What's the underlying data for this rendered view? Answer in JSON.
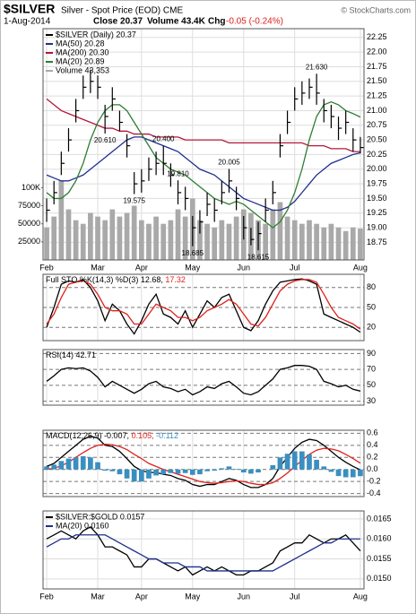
{
  "header": {
    "symbol": "$SILVER",
    "description": "Silver - Spot Price (EOD) CME",
    "date": "1-Aug-2014",
    "close": "Close 20.37",
    "volume": "Volume 43.4K",
    "chg_label": "Chg",
    "chg": "-0.05 (-0.24%)",
    "credit": "© StockCharts.com"
  },
  "chart_data": [
    {
      "type": "ohlc",
      "legend": "top-left",
      "legend_style": "stacked",
      "categories": [
        "Feb",
        null,
        null,
        null,
        null,
        null,
        null,
        "Mar",
        null,
        null,
        null,
        null,
        null,
        "Apr",
        null,
        null,
        null,
        null,
        null,
        null,
        "May",
        null,
        null,
        null,
        null,
        null,
        null,
        "Jun",
        null,
        null,
        null,
        null,
        null,
        null,
        "Jul",
        null,
        null,
        null,
        null,
        null,
        null,
        null,
        null,
        "Aug"
      ],
      "ylim": [
        18.45,
        22.4
      ],
      "yticks": [
        18.75,
        {
          "value": 19,
          "label": "19.00"
        },
        19.25,
        {
          "value": 19.5,
          "label": "19.50"
        },
        19.75,
        {
          "value": 20,
          "label": "20.00"
        },
        20.25,
        {
          "value": 20.5,
          "label": "20.50"
        },
        20.75,
        {
          "value": 21,
          "label": "21.00"
        },
        21.25,
        {
          "value": 21.5,
          "label": "21.50"
        },
        21.75,
        {
          "value": 22,
          "label": "22.00"
        },
        22.25
      ],
      "y2lim": [
        0,
        320000
      ],
      "y2ticks": [
        25000,
        50000,
        75000,
        {
          "value": 100000,
          "label": "100K"
        }
      ],
      "series": [
        {
          "name": "Volume 43,353",
          "style": "bar",
          "axis": "y2",
          "color": "#a9a9a9",
          "values": [
            45000,
            60000,
            110000,
            70000,
            55000,
            50000,
            65000,
            60000,
            55000,
            70000,
            60000,
            65000,
            75000,
            55000,
            50000,
            60000,
            50000,
            55000,
            70000,
            60000,
            85000,
            55000,
            50000,
            45000,
            55000,
            50000,
            60000,
            70000,
            65000,
            55000,
            50000,
            70000,
            80000,
            60000,
            55000,
            50000,
            55000,
            50000,
            45000,
            50000,
            45000,
            40000,
            45000,
            43353
          ]
        },
        {
          "name": "MA(200) 20.30",
          "style": "line",
          "color": "#b2183b",
          "values": [
            21.2,
            21.1,
            21.0,
            20.95,
            20.9,
            20.85,
            20.8,
            20.75,
            20.7,
            20.7,
            20.65,
            20.65,
            20.6,
            20.6,
            20.6,
            20.55,
            20.55,
            20.55,
            20.55,
            20.5,
            20.5,
            20.5,
            20.5,
            20.5,
            20.5,
            20.45,
            20.45,
            20.45,
            20.45,
            20.45,
            20.45,
            20.45,
            20.45,
            20.45,
            20.45,
            20.45,
            20.4,
            20.4,
            20.4,
            20.35,
            20.35,
            20.35,
            20.3,
            20.3
          ]
        },
        {
          "name": "MA(50) 20.28",
          "style": "line",
          "color": "#1f2f8f",
          "values": [
            19.9,
            19.85,
            19.8,
            19.8,
            19.85,
            19.9,
            20.0,
            20.1,
            20.2,
            20.3,
            20.4,
            20.5,
            20.55,
            20.55,
            20.5,
            20.45,
            20.4,
            20.35,
            20.3,
            20.2,
            20.1,
            20.0,
            19.95,
            19.9,
            19.8,
            19.7,
            19.6,
            19.5,
            19.45,
            19.4,
            19.35,
            19.3,
            19.3,
            19.35,
            19.45,
            19.6,
            19.75,
            19.9,
            20.0,
            20.1,
            20.15,
            20.2,
            20.25,
            20.28
          ]
        },
        {
          "name": "MA(20) 20.89",
          "style": "line",
          "color": "#2e7d32",
          "values": [
            19.6,
            19.5,
            19.5,
            19.6,
            19.8,
            20.1,
            20.5,
            20.8,
            21.0,
            21.1,
            21.1,
            21.0,
            20.8,
            20.6,
            20.4,
            20.2,
            20.1,
            20.0,
            19.95,
            19.9,
            19.8,
            19.7,
            19.6,
            19.5,
            19.45,
            19.4,
            19.45,
            19.4,
            19.3,
            19.2,
            19.1,
            19.0,
            19.1,
            19.3,
            19.6,
            20.0,
            20.5,
            20.9,
            21.1,
            21.15,
            21.1,
            21.0,
            20.95,
            20.89
          ]
        },
        {
          "name": "$SILVER (Daily) 20.37",
          "style": "ohlc",
          "color": "#000000",
          "high": [
            19.5,
            19.8,
            20.3,
            20.7,
            21.2,
            21.6,
            21.7,
            21.6,
            21.1,
            21.4,
            21.0,
            20.6,
            19.95,
            20.0,
            20.2,
            20.3,
            20.4,
            20.1,
            19.81,
            19.7,
            19.2,
            19.3,
            19.6,
            19.5,
            19.8,
            20.005,
            19.7,
            19.2,
            19.0,
            19.1,
            19.5,
            19.8,
            20.6,
            21.0,
            21.4,
            21.5,
            21.55,
            21.63,
            21.2,
            21.1,
            20.9,
            21.0,
            20.7,
            20.55
          ],
          "low": [
            19.1,
            19.4,
            19.9,
            20.3,
            20.8,
            21.2,
            21.3,
            21.2,
            20.61,
            21.0,
            20.65,
            20.2,
            19.575,
            19.6,
            19.8,
            19.9,
            19.9,
            19.7,
            19.4,
            19.3,
            18.685,
            18.9,
            19.2,
            19.1,
            19.4,
            19.6,
            19.3,
            18.8,
            18.7,
            18.615,
            19.1,
            19.4,
            20.2,
            20.6,
            21.0,
            21.1,
            21.2,
            21.1,
            20.8,
            20.7,
            20.5,
            20.6,
            20.3,
            20.27
          ],
          "values": [
            19.3,
            19.6,
            20.1,
            20.5,
            21.0,
            21.4,
            21.5,
            21.4,
            20.9,
            21.2,
            20.8,
            20.4,
            19.75,
            19.8,
            20.0,
            20.1,
            20.1,
            19.9,
            19.6,
            19.5,
            19.0,
            19.1,
            19.4,
            19.3,
            19.6,
            19.8,
            19.5,
            19.0,
            18.8,
            18.9,
            19.3,
            19.6,
            20.4,
            20.8,
            21.2,
            21.3,
            21.4,
            21.3,
            21.0,
            20.9,
            20.7,
            20.8,
            20.5,
            20.37
          ]
        }
      ],
      "annotations": [
        {
          "value": 21.63,
          "label": "21.630"
        },
        {
          "value": 20.61,
          "label": "20.610"
        },
        {
          "value": 20.4,
          "label": "20.400"
        },
        {
          "value": 20.005,
          "label": "20.005"
        },
        {
          "value": 19.81,
          "label": "19.810"
        },
        {
          "value": 19.575,
          "label": "19.575"
        },
        {
          "value": 18.685,
          "label": "18.685"
        },
        {
          "value": 18.615,
          "label": "18.615"
        }
      ]
    },
    {
      "type": "line",
      "legend": "top-left",
      "legend_style": "inline",
      "ylim": [
        0,
        100
      ],
      "yticks": [
        20,
        50,
        80
      ],
      "series": [
        {
          "name": "Full STO %K(14,3) %D(3) 12.68,",
          "style": "line",
          "color": "#000000",
          "values": [
            20,
            50,
            85,
            90,
            88,
            92,
            80,
            60,
            30,
            55,
            45,
            25,
            10,
            30,
            55,
            70,
            40,
            35,
            25,
            45,
            20,
            40,
            60,
            50,
            65,
            70,
            45,
            20,
            15,
            30,
            55,
            75,
            88,
            90,
            92,
            93,
            90,
            85,
            40,
            35,
            30,
            25,
            20,
            12.68
          ]
        },
        {
          "name": "17.32",
          "style": "line",
          "color": "#e0201b",
          "values": [
            25,
            40,
            65,
            85,
            88,
            90,
            85,
            70,
            50,
            45,
            45,
            40,
            25,
            25,
            40,
            55,
            50,
            45,
            35,
            35,
            30,
            35,
            45,
            50,
            55,
            62,
            55,
            40,
            25,
            22,
            35,
            55,
            75,
            85,
            90,
            92,
            92,
            88,
            70,
            50,
            35,
            30,
            25,
            17.32
          ]
        }
      ]
    },
    {
      "type": "line",
      "legend": "top-left",
      "legend_style": "inline",
      "ylim": [
        25,
        95
      ],
      "yticks": [
        30,
        50,
        70,
        90
      ],
      "series": [
        {
          "name": "RSI(14) 42.71",
          "style": "line",
          "color": "#000000",
          "values": [
            55,
            62,
            70,
            72,
            71,
            72,
            68,
            60,
            48,
            55,
            50,
            45,
            40,
            45,
            52,
            55,
            48,
            46,
            42,
            45,
            38,
            42,
            48,
            46,
            52,
            55,
            48,
            40,
            38,
            42,
            50,
            58,
            70,
            72,
            75,
            75,
            74,
            70,
            55,
            52,
            48,
            50,
            45,
            42.71
          ]
        }
      ]
    },
    {
      "type": "line",
      "legend": "top-left",
      "legend_style": "inline",
      "ylim": [
        -0.45,
        0.65
      ],
      "yticks": [
        -0.4,
        -0.2,
        {
          "value": 0,
          "label": "0.0"
        },
        0.2,
        0.4,
        0.6
      ],
      "series": [
        {
          "name": "MACD(12,26,9) -0.007,",
          "style": "line",
          "color": "#000000",
          "values": [
            0.05,
            0.1,
            0.2,
            0.3,
            0.4,
            0.5,
            0.55,
            0.52,
            0.4,
            0.38,
            0.3,
            0.18,
            0.05,
            -0.02,
            -0.05,
            -0.05,
            -0.08,
            -0.1,
            -0.15,
            -0.18,
            -0.25,
            -0.28,
            -0.25,
            -0.25,
            -0.2,
            -0.15,
            -0.18,
            -0.25,
            -0.3,
            -0.3,
            -0.25,
            -0.15,
            0.05,
            0.2,
            0.35,
            0.45,
            0.5,
            0.48,
            0.4,
            0.3,
            0.2,
            0.12,
            0.05,
            -0.007
          ]
        },
        {
          "name": "0.105,",
          "style": "line",
          "color": "#e0201b",
          "values": [
            0.0,
            0.02,
            0.06,
            0.12,
            0.2,
            0.28,
            0.35,
            0.4,
            0.42,
            0.41,
            0.38,
            0.33,
            0.25,
            0.18,
            0.1,
            0.05,
            0.0,
            -0.04,
            -0.08,
            -0.12,
            -0.16,
            -0.2,
            -0.22,
            -0.23,
            -0.22,
            -0.2,
            -0.19,
            -0.2,
            -0.23,
            -0.25,
            -0.25,
            -0.22,
            -0.15,
            -0.06,
            0.05,
            0.15,
            0.25,
            0.32,
            0.35,
            0.34,
            0.31,
            0.25,
            0.18,
            0.105
          ]
        },
        {
          "name": "-0.112",
          "style": "bar",
          "color": "#3a8fc0",
          "values": [
            0.05,
            0.08,
            0.14,
            0.18,
            0.2,
            0.22,
            0.2,
            0.12,
            -0.02,
            -0.03,
            -0.08,
            -0.15,
            -0.2,
            -0.2,
            -0.15,
            -0.1,
            -0.08,
            -0.06,
            -0.07,
            -0.06,
            -0.09,
            -0.08,
            -0.03,
            -0.02,
            0.02,
            0.05,
            0.01,
            -0.05,
            -0.07,
            -0.05,
            0.0,
            0.07,
            0.2,
            0.26,
            0.3,
            0.3,
            0.25,
            0.16,
            0.05,
            -0.04,
            -0.11,
            -0.13,
            -0.13,
            -0.112
          ]
        }
      ]
    },
    {
      "type": "line",
      "legend": "top-left",
      "legend_style": "stacked",
      "ylim": [
        0.01475,
        0.0167
      ],
      "yticks": [
        {
          "value": 0.015,
          "label": "0.0150"
        },
        0.0155,
        {
          "value": 0.016,
          "label": "0.0160"
        },
        0.0165
      ],
      "categories": [
        "Feb",
        null,
        null,
        null,
        null,
        null,
        null,
        "Mar",
        null,
        null,
        null,
        null,
        null,
        "Apr",
        null,
        null,
        null,
        null,
        null,
        null,
        "May",
        null,
        null,
        null,
        null,
        null,
        null,
        "Jun",
        null,
        null,
        null,
        null,
        null,
        null,
        "Jul",
        null,
        null,
        null,
        null,
        null,
        null,
        null,
        null,
        "Aug"
      ],
      "series": [
        {
          "name": "$SILVER:$GOLD 0.0157",
          "style": "line",
          "color": "#000000",
          "values": [
            0.016,
            0.0161,
            0.0162,
            0.0161,
            0.016,
            0.0162,
            0.0163,
            0.0161,
            0.0158,
            0.0158,
            0.0157,
            0.0156,
            0.0153,
            0.0153,
            0.0155,
            0.0155,
            0.0154,
            0.0153,
            0.0152,
            0.0153,
            0.0151,
            0.0152,
            0.0153,
            0.0152,
            0.0153,
            0.0152,
            0.0151,
            0.0151,
            0.0152,
            0.0152,
            0.0153,
            0.0154,
            0.0157,
            0.0158,
            0.0159,
            0.0159,
            0.0161,
            0.016,
            0.0159,
            0.016,
            0.016,
            0.0161,
            0.0159,
            0.0157
          ]
        },
        {
          "name": "MA(20) 0.0160",
          "style": "line",
          "color": "#1f2f8f",
          "values": [
            0.0158,
            0.0159,
            0.016,
            0.016,
            0.0161,
            0.0161,
            0.0161,
            0.0161,
            0.0161,
            0.016,
            0.0159,
            0.0158,
            0.0157,
            0.0156,
            0.0155,
            0.0155,
            0.0154,
            0.0154,
            0.0154,
            0.0153,
            0.0153,
            0.0153,
            0.0152,
            0.0152,
            0.0152,
            0.0152,
            0.0152,
            0.0152,
            0.0152,
            0.0152,
            0.0152,
            0.0152,
            0.0153,
            0.0154,
            0.0155,
            0.0156,
            0.0157,
            0.0158,
            0.0159,
            0.0159,
            0.016,
            0.016,
            0.016,
            0.016
          ]
        }
      ]
    }
  ]
}
